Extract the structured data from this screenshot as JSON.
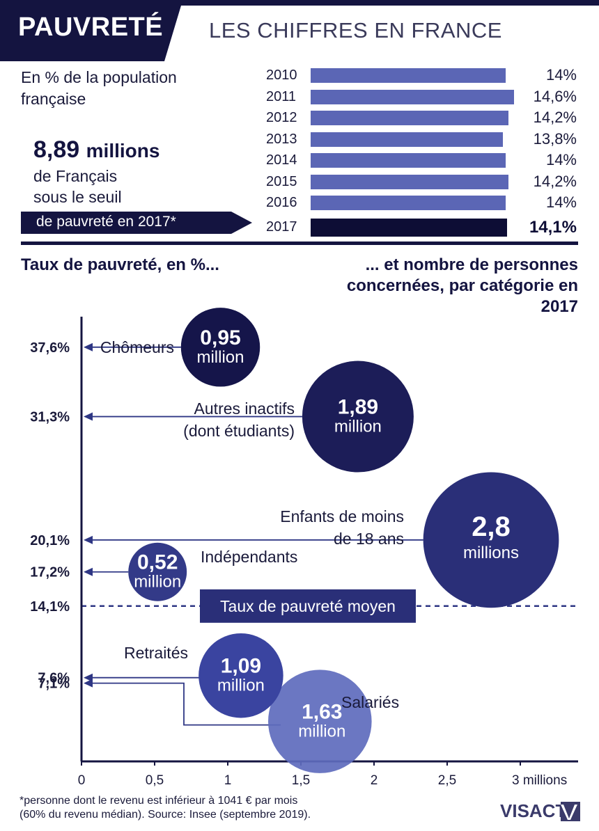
{
  "header": {
    "title": "PAUVRETÉ",
    "subtitle": "LES CHIFFRES EN FRANCE"
  },
  "annual": {
    "caption": "En % de la population française",
    "highlight_number": "8,89",
    "highlight_unit": "millions",
    "highlight_line1": "de Français",
    "highlight_line2": "sous le seuil",
    "highlight_line3": "de pauvreté en 2017*"
  },
  "section": {
    "left_heading": "Taux de pauvreté, en %...",
    "right_heading": "... et nombre de personnes concernées, par catégorie en 2017"
  },
  "chart_data": [
    {
      "type": "bar",
      "orientation": "horizontal",
      "categories": [
        "2010",
        "2011",
        "2012",
        "2013",
        "2014",
        "2015",
        "2016",
        "2017"
      ],
      "values": [
        14,
        14.6,
        14.2,
        13.8,
        14,
        14.2,
        14,
        14.1
      ],
      "value_labels": [
        "14%",
        "14,6%",
        "14,2%",
        "13,8%",
        "14%",
        "14,2%",
        "14%",
        "14,1%"
      ],
      "highlight": "2017",
      "colors": {
        "bar": "#5b66b5",
        "highlight": "#0d0d35"
      }
    },
    {
      "type": "scatter",
      "subtype": "bubble",
      "xlim": [
        0,
        3.4
      ],
      "ylim": [
        0,
        41
      ],
      "xticks": [
        0,
        0.5,
        1,
        1.5,
        2,
        2.5,
        3
      ],
      "xtick_labels": [
        "0",
        "0,5",
        "1",
        "1,5",
        "2",
        "2,5",
        "3 millions"
      ],
      "yticks": [
        37.6,
        31.3,
        20.1,
        17.2,
        14.1,
        7.6,
        7.1
      ],
      "ytick_labels": [
        "37,6%",
        "31,3%",
        "20,1%",
        "17,2%",
        "14,1%",
        "7,6%",
        "7,1%"
      ],
      "points": [
        {
          "category": "Chômeurs",
          "label_lines": [
            "Chômeurs"
          ],
          "x": 0.95,
          "y": 37.6,
          "value_label": "0,95",
          "unit_label": "million",
          "color": "#15154a"
        },
        {
          "category": "Autres inactifs",
          "label_lines": [
            "Autres inactifs",
            "(dont étudiants)"
          ],
          "x": 1.89,
          "y": 31.3,
          "value_label": "1,89",
          "unit_label": "million",
          "color": "#1c1d58"
        },
        {
          "category": "Enfants de moins de 18 ans",
          "label_lines": [
            "Enfants de moins",
            "de 18 ans"
          ],
          "x": 2.8,
          "y": 20.1,
          "value_label": "2,8",
          "unit_label": "millions",
          "color": "#2a2f78"
        },
        {
          "category": "Indépendants",
          "label_lines": [
            "Indépendants"
          ],
          "x": 0.52,
          "y": 17.2,
          "value_label": "0,52",
          "unit_label": "million",
          "color": "#333a88"
        },
        {
          "category": "Retraités",
          "label_lines": [
            "Retraités"
          ],
          "x": 1.09,
          "y": 7.6,
          "value_label": "1,09",
          "unit_label": "million",
          "color": "#3a44a0"
        },
        {
          "category": "Salariés",
          "label_lines": [
            "Salariés"
          ],
          "x": 1.63,
          "y": 7.1,
          "value_label": "1,63",
          "unit_label": "million",
          "color": "#5e6bbd"
        }
      ],
      "average": {
        "label": "Taux de pauvreté moyen",
        "y": 14.1
      },
      "colors": {
        "axis": "#141440",
        "arrow": "#2e3684",
        "average_band": "#2a2f78"
      }
    }
  ],
  "footnote": {
    "line1": "*personne dont le revenu est inférieur à 1041 € par mois",
    "line2": "(60% du revenu médian).  Source: Insee (septembre 2019)."
  },
  "logo": "VISACTU"
}
